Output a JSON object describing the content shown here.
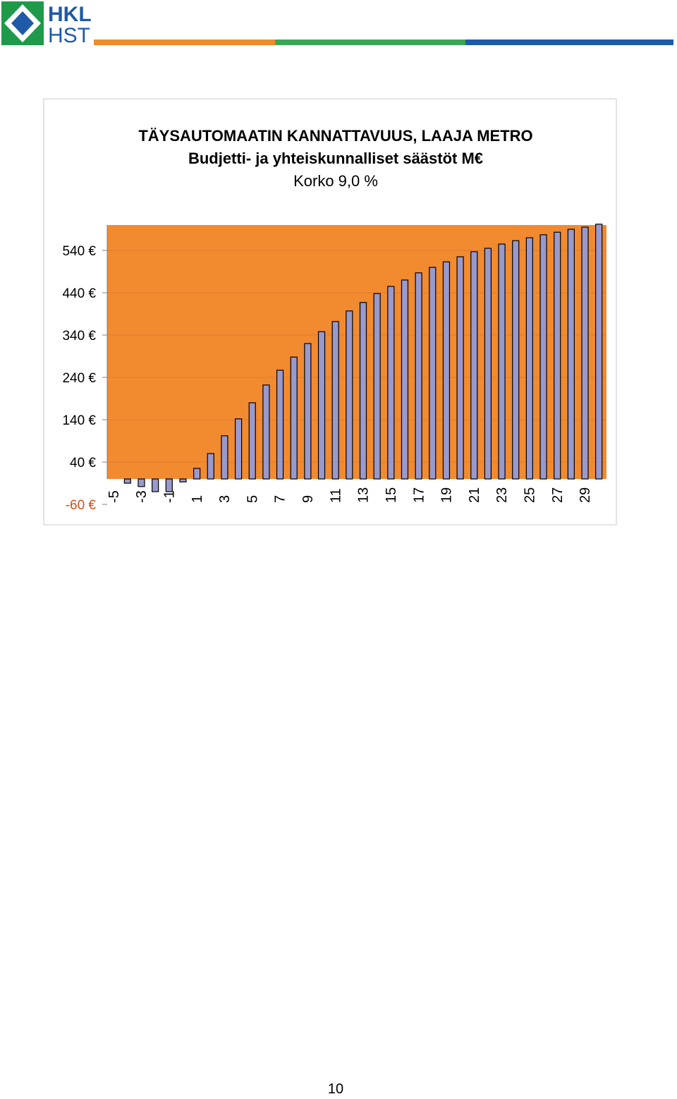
{
  "header": {
    "logo": [
      "HKL",
      "HST"
    ]
  },
  "chart_data": {
    "type": "bar",
    "title_lines": [
      "TÄYSAUTOMAATIN KANNATTAVUUS, LAAJA METRO",
      "Budjetti- ja yhteiskunnalliset säästöt M€",
      "Korko 9,0 %"
    ],
    "categories": [
      -5,
      null,
      -3,
      null,
      -1,
      null,
      1,
      null,
      3,
      null,
      5,
      null,
      7,
      null,
      9,
      null,
      11,
      null,
      13,
      null,
      15,
      null,
      17,
      null,
      19,
      null,
      21,
      null,
      23,
      null,
      25,
      null,
      27,
      null,
      29
    ],
    "values": [
      -10,
      -18,
      -30,
      -30,
      -7,
      25,
      60,
      102,
      142,
      180,
      222,
      257,
      288,
      320,
      348,
      372,
      397,
      417,
      438,
      455,
      470,
      487,
      500,
      513,
      525,
      537,
      545,
      555,
      563,
      570,
      577,
      583,
      590,
      595,
      602
    ],
    "color": "#9999cc",
    "background": "#f28a30",
    "ylim": [
      -60,
      600
    ],
    "yticks": [
      {
        "value": -60,
        "label": "-60 €"
      },
      {
        "value": 40,
        "label": "40 €"
      },
      {
        "value": 140,
        "label": "140 €"
      },
      {
        "value": 240,
        "label": "240 €"
      },
      {
        "value": 340,
        "label": "340 €"
      },
      {
        "value": 440,
        "label": "440 €"
      },
      {
        "value": 540,
        "label": "540 €"
      }
    ],
    "grid": true
  },
  "footer": {
    "page": "10"
  }
}
